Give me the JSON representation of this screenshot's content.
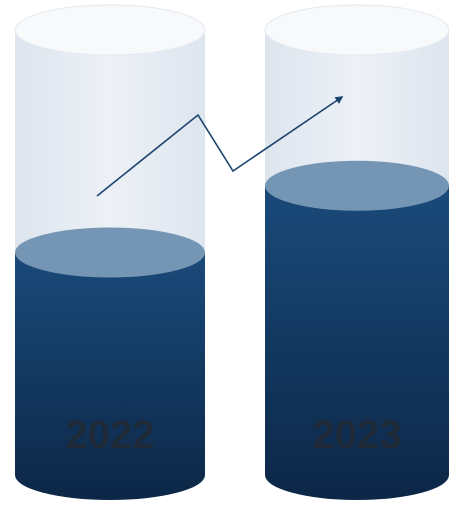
{
  "chart_data": {
    "type": "bar",
    "style": "3d-cylinder",
    "categories": [
      "2022",
      "2023"
    ],
    "values": [
      50,
      65
    ],
    "scale_max": 100,
    "trend_arrow": "upward",
    "grid": false,
    "legend": "none",
    "colors": {
      "fill_top": "#1a4a7a",
      "fill_bottom": "#0c2747",
      "fill_cap": "#7496b4",
      "tube": "#e6ecf3",
      "tube_cap": "#f7f9fb",
      "arrow": "#1c4470",
      "label": "#1f2a38"
    }
  }
}
